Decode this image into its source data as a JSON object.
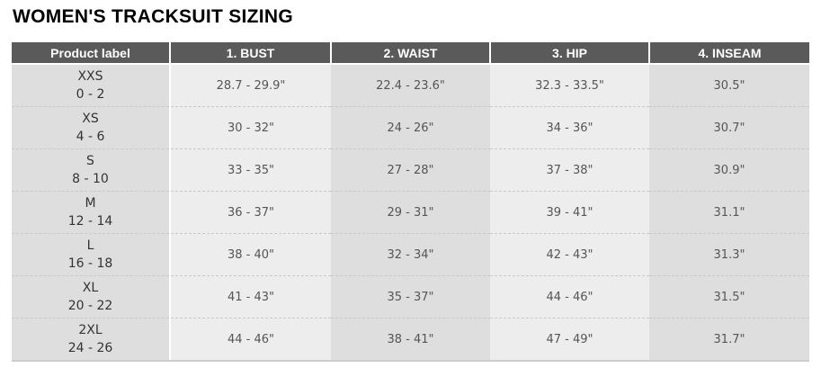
{
  "title": "WOMEN'S TRACKSUIT SIZING",
  "headers": [
    "Product label",
    "1. BUST",
    "2. WAIST",
    "3. HIP",
    "4. INSEAM"
  ],
  "rows": [
    {
      "size": "XXS",
      "us": "0 - 2",
      "values": [
        "28.7 - 29.9\"",
        "22.4 - 23.6\"",
        "32.3 - 33.5\"",
        "30.5\""
      ]
    },
    {
      "size": "XS",
      "us": "4 - 6",
      "values": [
        "30 - 32\"",
        "24 - 26\"",
        "34 - 36\"",
        "30.7\""
      ]
    },
    {
      "size": "S",
      "us": "8 - 10",
      "values": [
        "33 - 35\"",
        "27 - 28\"",
        "37 - 38\"",
        "30.9\""
      ]
    },
    {
      "size": "M",
      "us": "12 - 14",
      "values": [
        "36 - 37\"",
        "29 - 31\"",
        "39 - 41\"",
        "31.1\""
      ]
    },
    {
      "size": "L",
      "us": "16 - 18",
      "values": [
        "38 - 40\"",
        "32 - 34\"",
        "42 - 43\"",
        "31.3\""
      ]
    },
    {
      "size": "XL",
      "us": "20 - 22",
      "values": [
        "41 - 43\"",
        "35 - 37\"",
        "44 - 46\"",
        "31.5\""
      ]
    },
    {
      "size": "2XL",
      "us": "24 - 26",
      "values": [
        "44 - 46\"",
        "38 - 41\"",
        "47 - 49\"",
        "31.7\""
      ]
    }
  ]
}
